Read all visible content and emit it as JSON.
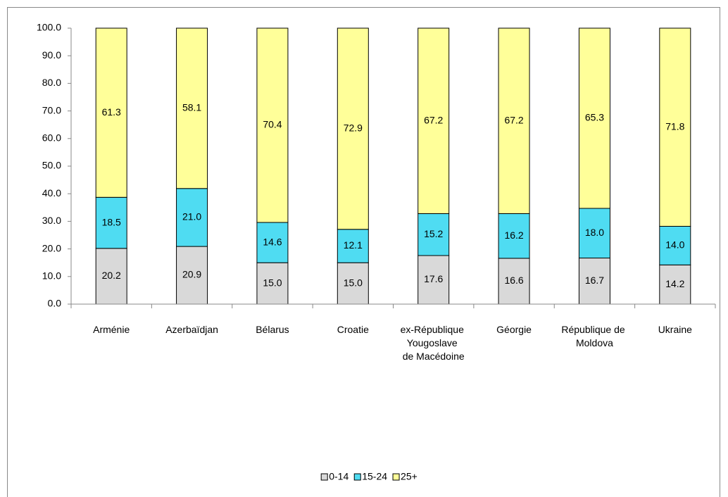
{
  "chart_data": {
    "type": "stacked_bar",
    "categories": [
      "Arménie",
      "Azerbaïdjan",
      "Bélarus",
      "Croatie",
      "ex-République\nYougoslave\nde Macédoine",
      "Géorgie",
      "République de\nMoldova",
      "Ukraine"
    ],
    "series": [
      {
        "name": "0-14",
        "color": "#d9d9d9",
        "values": [
          20.2,
          20.9,
          15.0,
          15.0,
          17.6,
          16.6,
          16.7,
          14.2
        ],
        "value_labels": [
          "20.2",
          "20.9",
          "15.0",
          "15.0",
          "17.6",
          "16.6",
          "16.7",
          "14.2"
        ]
      },
      {
        "name": "15-24",
        "color": "#4fdcf2",
        "values": [
          18.5,
          21.0,
          14.6,
          12.1,
          15.2,
          16.2,
          18.0,
          14.0
        ],
        "value_labels": [
          "18.5",
          "21.0",
          "14.6",
          "12.1",
          "15.2",
          "16.2",
          "18.0",
          "14.0"
        ]
      },
      {
        "name": "25+",
        "color": "#ffff99",
        "values": [
          61.3,
          58.1,
          70.4,
          72.9,
          67.2,
          67.2,
          65.3,
          71.8
        ],
        "value_labels": [
          "61.3",
          "58.1",
          "70.4",
          "72.9",
          "67.2",
          "67.2",
          "65.3",
          "71.8"
        ]
      }
    ],
    "ylim": [
      0,
      100
    ],
    "yticks": [
      {
        "value": 0,
        "label": "0.0"
      },
      {
        "value": 10,
        "label": "10.0"
      },
      {
        "value": 20,
        "label": "20.0"
      },
      {
        "value": 30,
        "label": "30.0"
      },
      {
        "value": 40,
        "label": "40.0"
      },
      {
        "value": 50,
        "label": "50.0"
      },
      {
        "value": 60,
        "label": "60.0"
      },
      {
        "value": 70,
        "label": "70.0"
      },
      {
        "value": 80,
        "label": "80.0"
      },
      {
        "value": 90,
        "label": "90.0"
      },
      {
        "value": 100,
        "label": "100.0"
      }
    ],
    "legend": "bottom",
    "grid": false
  }
}
